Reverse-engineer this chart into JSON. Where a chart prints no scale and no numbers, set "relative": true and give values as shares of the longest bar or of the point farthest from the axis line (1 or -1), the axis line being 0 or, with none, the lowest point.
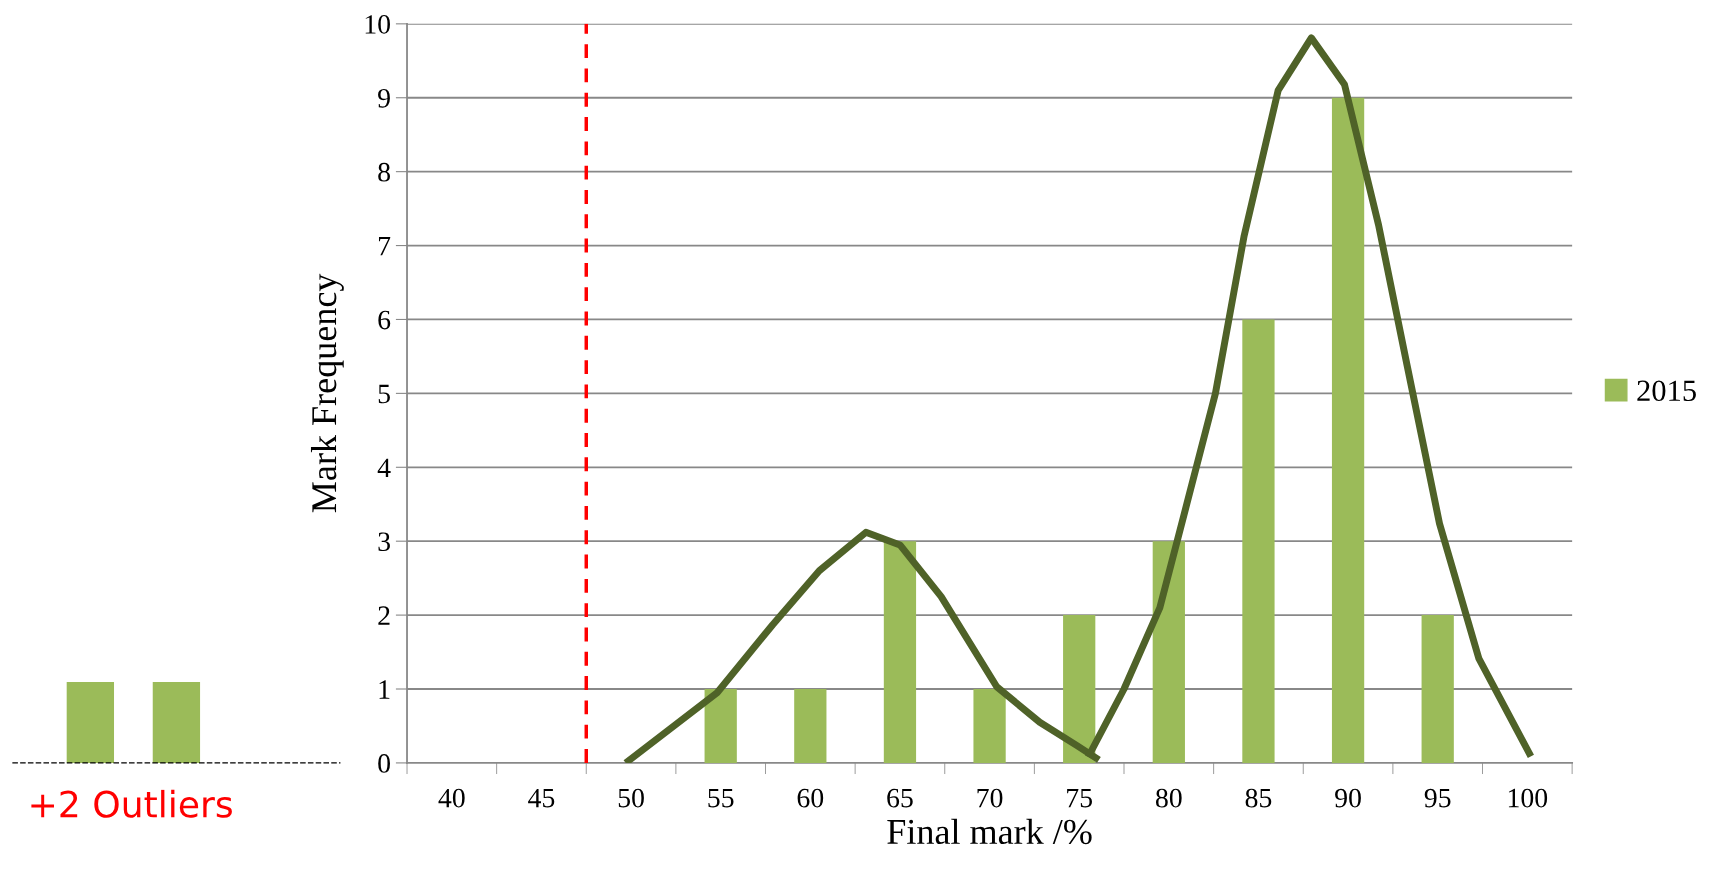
{
  "chart_data": [
    {
      "type": "bar",
      "xlabel": "Final mark /%",
      "ylabel": "Mark Frequency",
      "x": [
        40,
        45,
        50,
        55,
        60,
        65,
        70,
        75,
        80,
        85,
        90,
        95,
        100
      ],
      "series": [
        {
          "name": "2015",
          "color": "#9bbb59",
          "values": [
            0,
            0,
            0,
            1,
            1,
            3,
            1,
            2,
            3,
            6,
            9,
            2,
            0
          ]
        },
        {
          "type": "line",
          "color": "#4f6228",
          "x": [
            49.7,
            54.8,
            57.9,
            60.5,
            63.1,
            65.0,
            67.3,
            70.4,
            72.8,
            74.9,
            76.1
          ],
          "values": [
            0,
            0.95,
            1.87,
            2.6,
            3.12,
            2.95,
            2.25,
            1.03,
            0.55,
            0.23,
            0.04
          ]
        },
        {
          "type": "line",
          "color": "#4f6228",
          "x": [
            75.5,
            77.5,
            79.5,
            81.0,
            82.6,
            84.2,
            86.1,
            87.95,
            89.8,
            91.7,
            93.3,
            95.1,
            97.3,
            100.2
          ],
          "values": [
            0.08,
            1.0,
            2.1,
            3.5,
            5.0,
            7.13,
            9.1,
            9.81,
            9.18,
            7.28,
            5.37,
            3.24,
            1.41,
            0.09
          ]
        }
      ],
      "xlim": [
        37.5,
        102.5
      ],
      "xticks": [
        40,
        45,
        50,
        55,
        60,
        65,
        70,
        75,
        80,
        85,
        90,
        95,
        100
      ],
      "ylim": [
        0,
        10
      ],
      "yticks": [
        0,
        1,
        2,
        3,
        4,
        5,
        6,
        7,
        8,
        9,
        10
      ],
      "ref_lines": [
        {
          "axis": "x",
          "value": 47.5,
          "color": "#ff0000",
          "line_style": "dashed"
        }
      ],
      "grid": "y",
      "legend": "right",
      "line_style": "solid",
      "marker": "none"
    },
    {
      "type": "bar",
      "relative": true,
      "categories": [
        null,
        null
      ],
      "series": [
        {
          "color": "#9bbb59",
          "values": [
            1,
            1
          ]
        }
      ],
      "annotations": [
        "+2 Outliers"
      ]
    }
  ]
}
